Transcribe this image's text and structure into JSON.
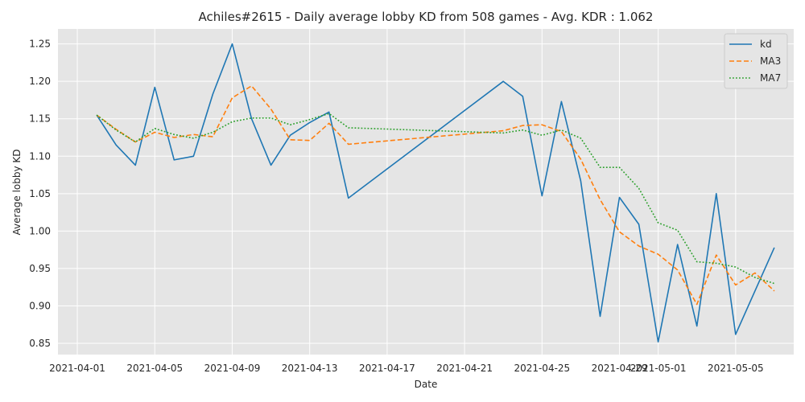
{
  "chart_data": {
    "type": "line",
    "title": "Achiles#2615 - Daily average lobby KD from 508 games - Avg. KDR : 1.062",
    "xlabel": "Date",
    "ylabel": "Average lobby KD",
    "x_ticks": [
      "2021-04-01",
      "2021-04-05",
      "2021-04-09",
      "2021-04-13",
      "2021-04-17",
      "2021-04-21",
      "2021-04-25",
      "2021-04-29",
      "2021-05-01",
      "2021-05-05"
    ],
    "y_ticks": [
      "0.85",
      "0.90",
      "0.95",
      "1.00",
      "1.05",
      "1.10",
      "1.15",
      "1.20",
      "1.25"
    ],
    "xlim": [
      "2021-03-31",
      "2021-05-08"
    ],
    "ylim": [
      0.835,
      1.27
    ],
    "grid": true,
    "legend_position": "top-right",
    "series": [
      {
        "name": "kd",
        "color": "#1f77b4",
        "style": "solid",
        "points": [
          [
            "2021-04-02",
            1.155
          ],
          [
            "2021-04-03",
            1.115
          ],
          [
            "2021-04-04",
            1.088
          ],
          [
            "2021-04-05",
            1.192
          ],
          [
            "2021-04-06",
            1.095
          ],
          [
            "2021-04-07",
            1.1
          ],
          [
            "2021-04-08",
            1.183
          ],
          [
            "2021-04-09",
            1.25
          ],
          [
            "2021-04-10",
            1.15
          ],
          [
            "2021-04-11",
            1.088
          ],
          [
            "2021-04-12",
            1.128
          ],
          [
            "2021-04-13",
            1.145
          ],
          [
            "2021-04-14",
            1.159
          ],
          [
            "2021-04-15",
            1.044
          ],
          [
            "2021-04-23",
            1.2
          ],
          [
            "2021-04-24",
            1.18
          ],
          [
            "2021-04-25",
            1.047
          ],
          [
            "2021-04-26",
            1.173
          ],
          [
            "2021-04-27",
            1.067
          ],
          [
            "2021-04-28",
            0.886
          ],
          [
            "2021-04-29",
            1.045
          ],
          [
            "2021-04-30",
            1.009
          ],
          [
            "2021-05-01",
            0.852
          ],
          [
            "2021-05-02",
            0.982
          ],
          [
            "2021-05-03",
            0.873
          ],
          [
            "2021-05-04",
            1.05
          ],
          [
            "2021-05-05",
            0.862
          ],
          [
            "2021-05-07",
            0.978
          ]
        ]
      },
      {
        "name": "MA3",
        "color": "#ff7f0e",
        "style": "dashed",
        "points": [
          [
            "2021-04-02",
            1.155
          ],
          [
            "2021-04-03",
            1.136
          ],
          [
            "2021-04-04",
            1.119
          ],
          [
            "2021-04-05",
            1.132
          ],
          [
            "2021-04-06",
            1.125
          ],
          [
            "2021-04-07",
            1.129
          ],
          [
            "2021-04-08",
            1.126
          ],
          [
            "2021-04-09",
            1.178
          ],
          [
            "2021-04-10",
            1.194
          ],
          [
            "2021-04-11",
            1.163
          ],
          [
            "2021-04-12",
            1.122
          ],
          [
            "2021-04-13",
            1.121
          ],
          [
            "2021-04-14",
            1.144
          ],
          [
            "2021-04-15",
            1.116
          ],
          [
            "2021-04-23",
            1.134
          ],
          [
            "2021-04-24",
            1.141
          ],
          [
            "2021-04-25",
            1.142
          ],
          [
            "2021-04-26",
            1.133
          ],
          [
            "2021-04-27",
            1.096
          ],
          [
            "2021-04-28",
            1.042
          ],
          [
            "2021-04-29",
            0.999
          ],
          [
            "2021-04-30",
            0.98
          ],
          [
            "2021-05-01",
            0.969
          ],
          [
            "2021-05-02",
            0.948
          ],
          [
            "2021-05-03",
            0.902
          ],
          [
            "2021-05-04",
            0.968
          ],
          [
            "2021-05-05",
            0.928
          ],
          [
            "2021-05-06",
            0.944
          ],
          [
            "2021-05-07",
            0.92
          ]
        ]
      },
      {
        "name": "MA7",
        "color": "#2ca02c",
        "style": "dotted",
        "points": [
          [
            "2021-04-02",
            1.155
          ],
          [
            "2021-04-03",
            1.135
          ],
          [
            "2021-04-04",
            1.119
          ],
          [
            "2021-04-05",
            1.137
          ],
          [
            "2021-04-06",
            1.129
          ],
          [
            "2021-04-07",
            1.124
          ],
          [
            "2021-04-08",
            1.132
          ],
          [
            "2021-04-09",
            1.146
          ],
          [
            "2021-04-10",
            1.151
          ],
          [
            "2021-04-11",
            1.151
          ],
          [
            "2021-04-12",
            1.142
          ],
          [
            "2021-04-13",
            1.149
          ],
          [
            "2021-04-14",
            1.157
          ],
          [
            "2021-04-15",
            1.138
          ],
          [
            "2021-04-23",
            1.131
          ],
          [
            "2021-04-24",
            1.135
          ],
          [
            "2021-04-25",
            1.128
          ],
          [
            "2021-04-26",
            1.135
          ],
          [
            "2021-04-27",
            1.124
          ],
          [
            "2021-04-28",
            1.085
          ],
          [
            "2021-04-29",
            1.085
          ],
          [
            "2021-04-30",
            1.057
          ],
          [
            "2021-05-01",
            1.011
          ],
          [
            "2021-05-02",
            1.001
          ],
          [
            "2021-05-03",
            0.959
          ],
          [
            "2021-05-04",
            0.957
          ],
          [
            "2021-05-05",
            0.952
          ],
          [
            "2021-05-06",
            0.938
          ],
          [
            "2021-05-07",
            0.93
          ]
        ]
      }
    ]
  }
}
